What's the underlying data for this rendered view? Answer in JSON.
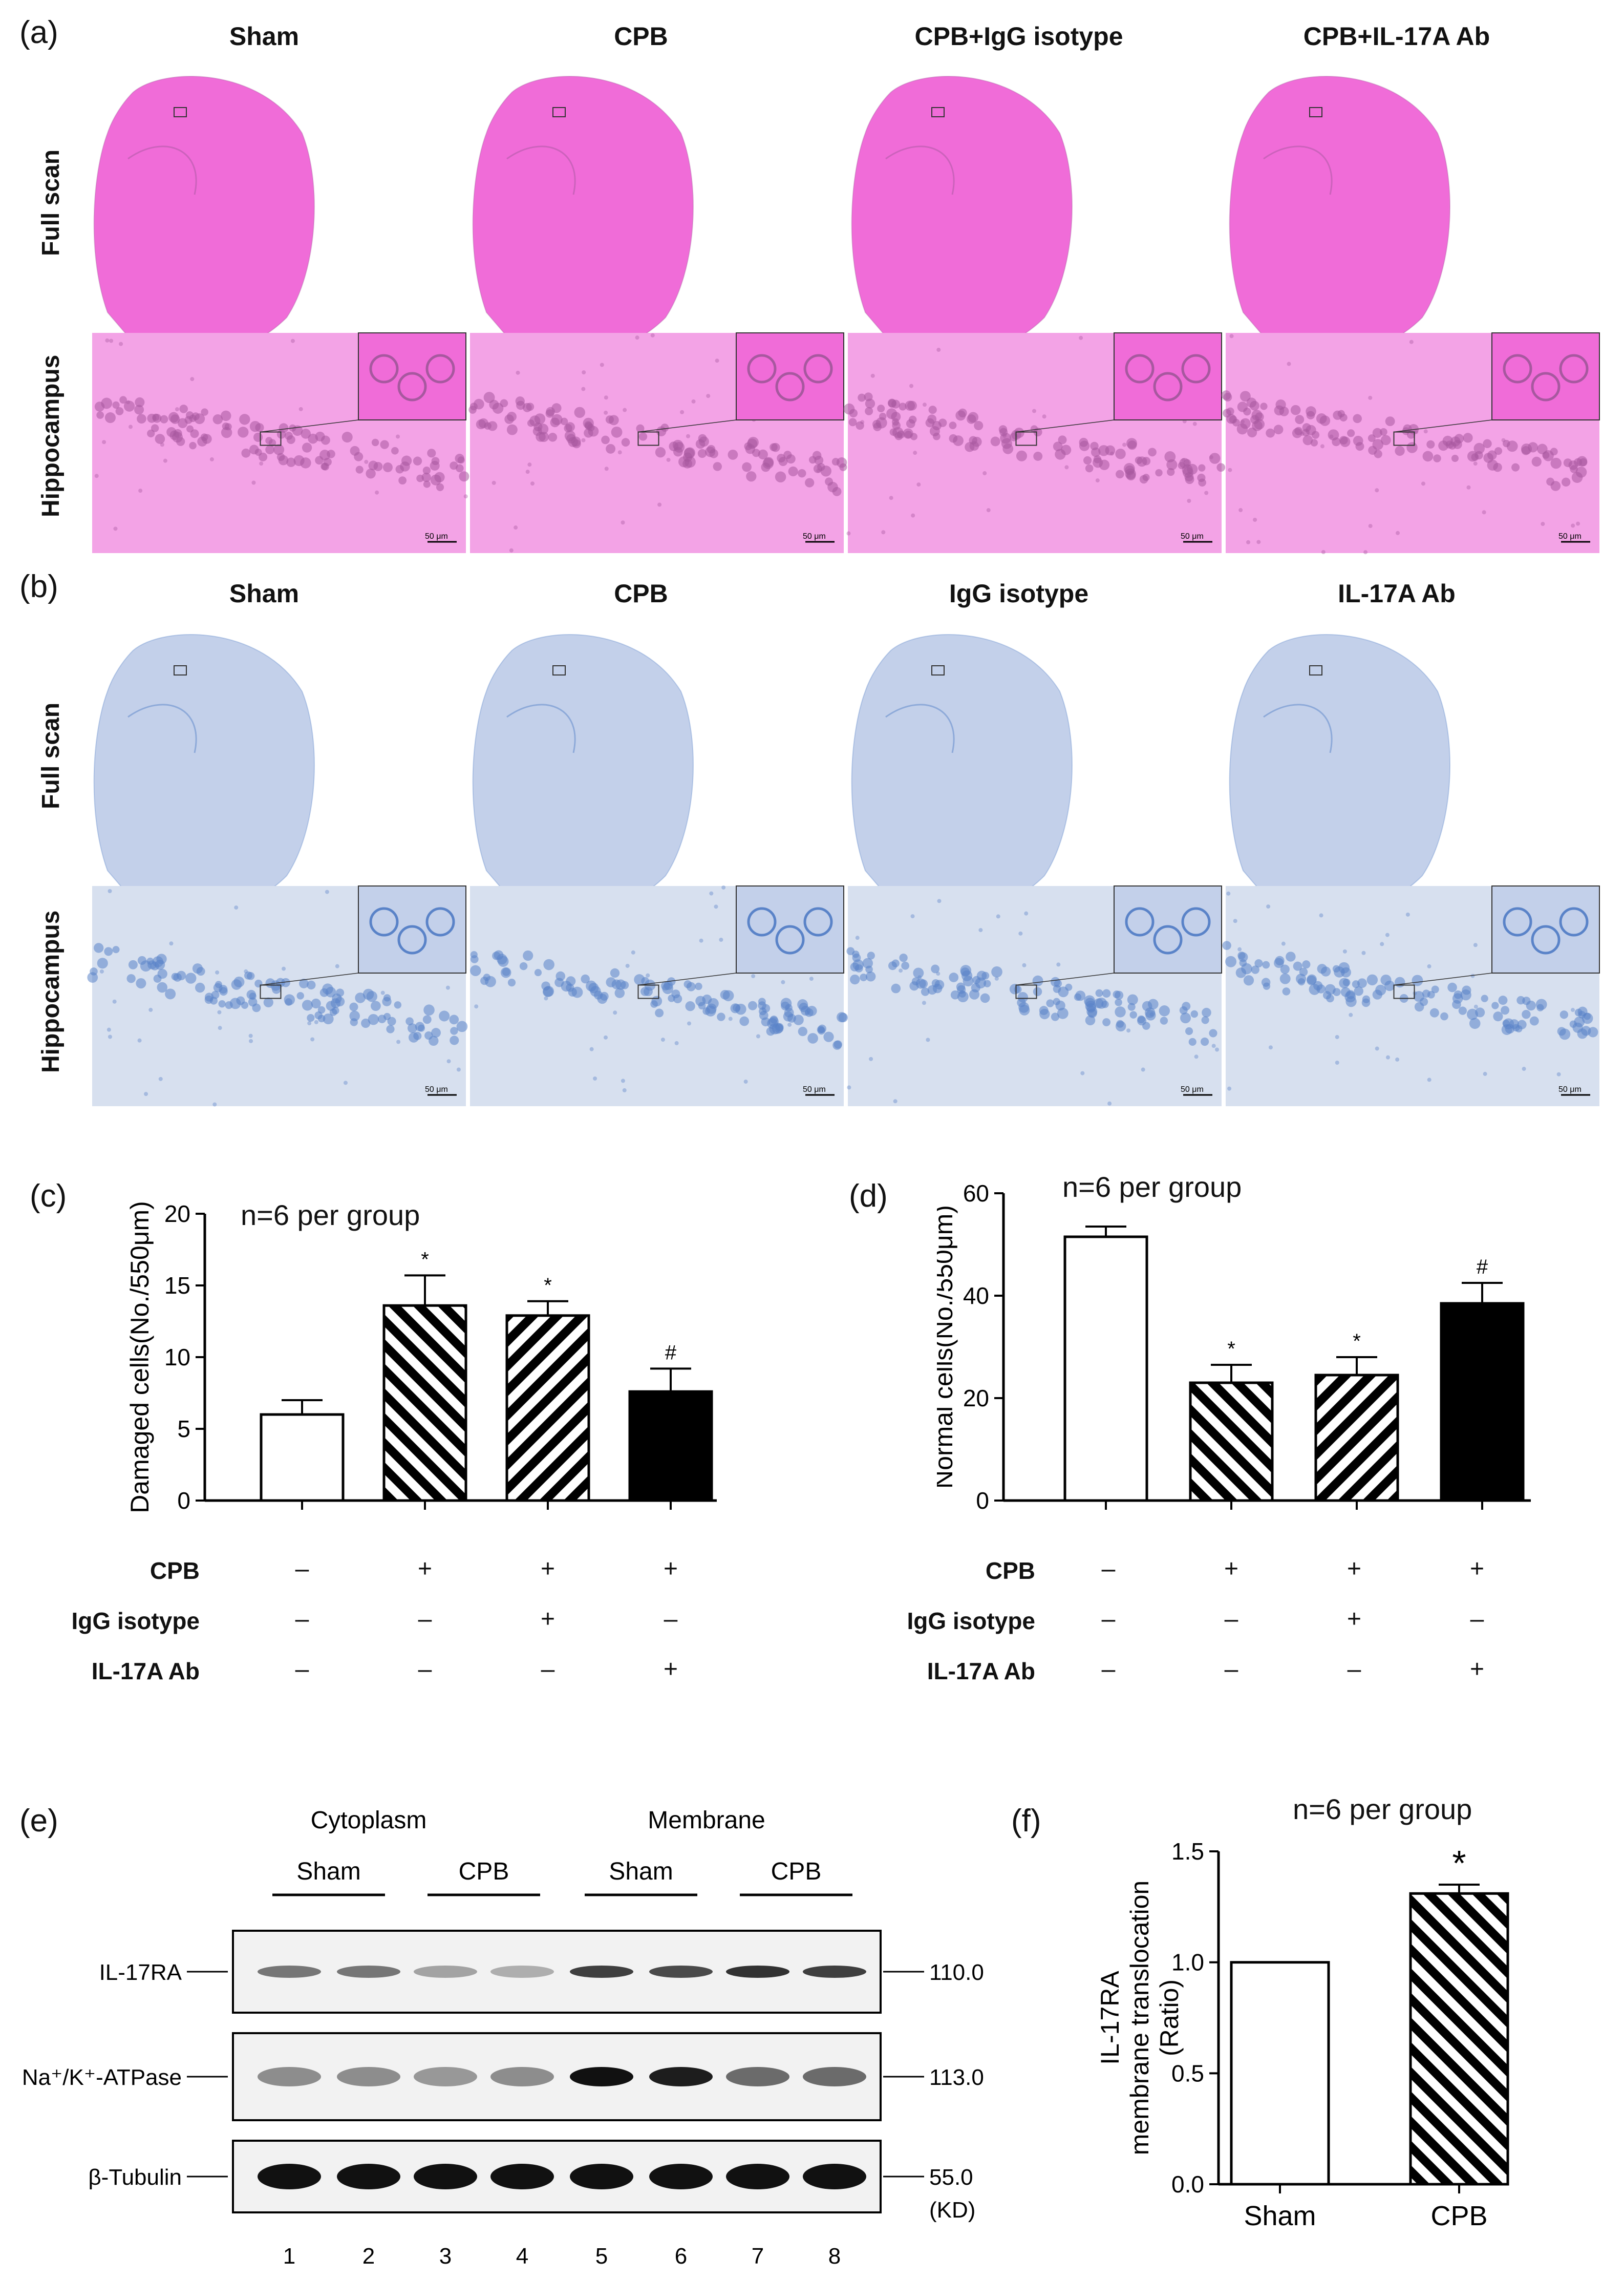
{
  "panel_a": {
    "label": "(a)",
    "columns": [
      "Sham",
      "CPB",
      "CPB+IgG isotype",
      "CPB+IL-17A Ab"
    ],
    "rows": [
      "Full scan",
      "Hippocampus"
    ],
    "scale": "50 μm",
    "colors": {
      "stain": "#f06cd8",
      "bg": "#f3a3e6",
      "cell": "#a7589f"
    }
  },
  "panel_b": {
    "label": "(b)",
    "columns": [
      "Sham",
      "CPB",
      "IgG isotype",
      "IL-17A Ab"
    ],
    "rows": [
      "Full scan",
      "Hippocampus"
    ],
    "scale": "50 μm",
    "colors": {
      "stain": "#c3d0ea",
      "bg": "#d7e0ef",
      "cell": "#5a83c8"
    }
  },
  "panel_c": {
    "label": "(c)",
    "n_text": "n=6 per group",
    "treatment_rows": [
      {
        "name": "CPB",
        "signs": [
          "–",
          "+",
          "+",
          "+"
        ]
      },
      {
        "name": "IgG isotype",
        "signs": [
          "–",
          "–",
          "+",
          "–"
        ]
      },
      {
        "name": "IL-17A Ab",
        "signs": [
          "–",
          "–",
          "–",
          "+"
        ]
      }
    ]
  },
  "panel_d": {
    "label": "(d)",
    "n_text": "n=6 per group",
    "treatment_rows": [
      {
        "name": "CPB",
        "signs": [
          "–",
          "+",
          "+",
          "+"
        ]
      },
      {
        "name": "IgG isotype",
        "signs": [
          "–",
          "–",
          "+",
          "–"
        ]
      },
      {
        "name": "IL-17A Ab",
        "signs": [
          "–",
          "–",
          "–",
          "+"
        ]
      }
    ]
  },
  "panel_e": {
    "label": "(e)",
    "groups": [
      "Cytoplasm",
      "Membrane"
    ],
    "subgroups": [
      "Sham",
      "CPB",
      "Sham",
      "CPB"
    ],
    "bands": [
      {
        "name": "IL-17RA",
        "kd": "110.0"
      },
      {
        "name": "Na⁺/K⁺-ATPase",
        "kd": "113.0"
      },
      {
        "name": "β-Tubulin",
        "kd": "55.0"
      }
    ],
    "kd_unit": "(KD)",
    "lanes": [
      "1",
      "2",
      "3",
      "4",
      "5",
      "6",
      "7",
      "8"
    ]
  },
  "panel_f": {
    "label": "(f)",
    "n_text": "n=6 per group"
  },
  "chart_data": [
    {
      "type": "bar",
      "id": "c",
      "title": "",
      "xlabel": "",
      "ylabel": "Damaged cells(No./550μm)",
      "categories": [
        "Sham",
        "CPB",
        "CPB+IgG isotype",
        "CPB+IL-17A Ab"
      ],
      "values": [
        6.0,
        13.6,
        12.9,
        7.6
      ],
      "errors": [
        1.0,
        2.1,
        1.0,
        1.6
      ],
      "annotations": [
        "",
        "*",
        "*",
        "#"
      ],
      "fills": [
        "white",
        "hatch-right",
        "hatch-left",
        "black"
      ],
      "ylim": [
        0,
        20
      ],
      "yticks": [
        "0",
        "5",
        "10",
        "15",
        "20"
      ]
    },
    {
      "type": "bar",
      "id": "d",
      "title": "",
      "xlabel": "",
      "ylabel": "Normal cells(No./550μm)",
      "categories": [
        "Sham",
        "CPB",
        "CPB+IgG isotype",
        "CPB+IL-17A Ab"
      ],
      "values": [
        51.5,
        23.0,
        24.5,
        38.5
      ],
      "errors": [
        2.0,
        3.5,
        3.5,
        4.0
      ],
      "annotations": [
        "",
        "*",
        "*",
        "#"
      ],
      "fills": [
        "white",
        "hatch-right",
        "hatch-left",
        "black"
      ],
      "ylim": [
        0,
        60
      ],
      "yticks": [
        "0",
        "20",
        "40",
        "60"
      ]
    },
    {
      "type": "bar",
      "id": "f",
      "title": "",
      "xlabel": "",
      "ylabel": "IL-17RA membrane translocation (Ratio)",
      "ylabel_lines": [
        "IL-17RA",
        "membrane translocation",
        "(Ratio)"
      ],
      "categories": [
        "Sham",
        "CPB"
      ],
      "values": [
        1.0,
        1.31
      ],
      "errors": [
        0.0,
        0.04
      ],
      "annotations": [
        "",
        "*"
      ],
      "fills": [
        "white",
        "hatch-right"
      ],
      "ylim": [
        0,
        1.5
      ],
      "yticks": [
        "0.0",
        "0.5",
        "1.0",
        "1.5"
      ]
    }
  ]
}
